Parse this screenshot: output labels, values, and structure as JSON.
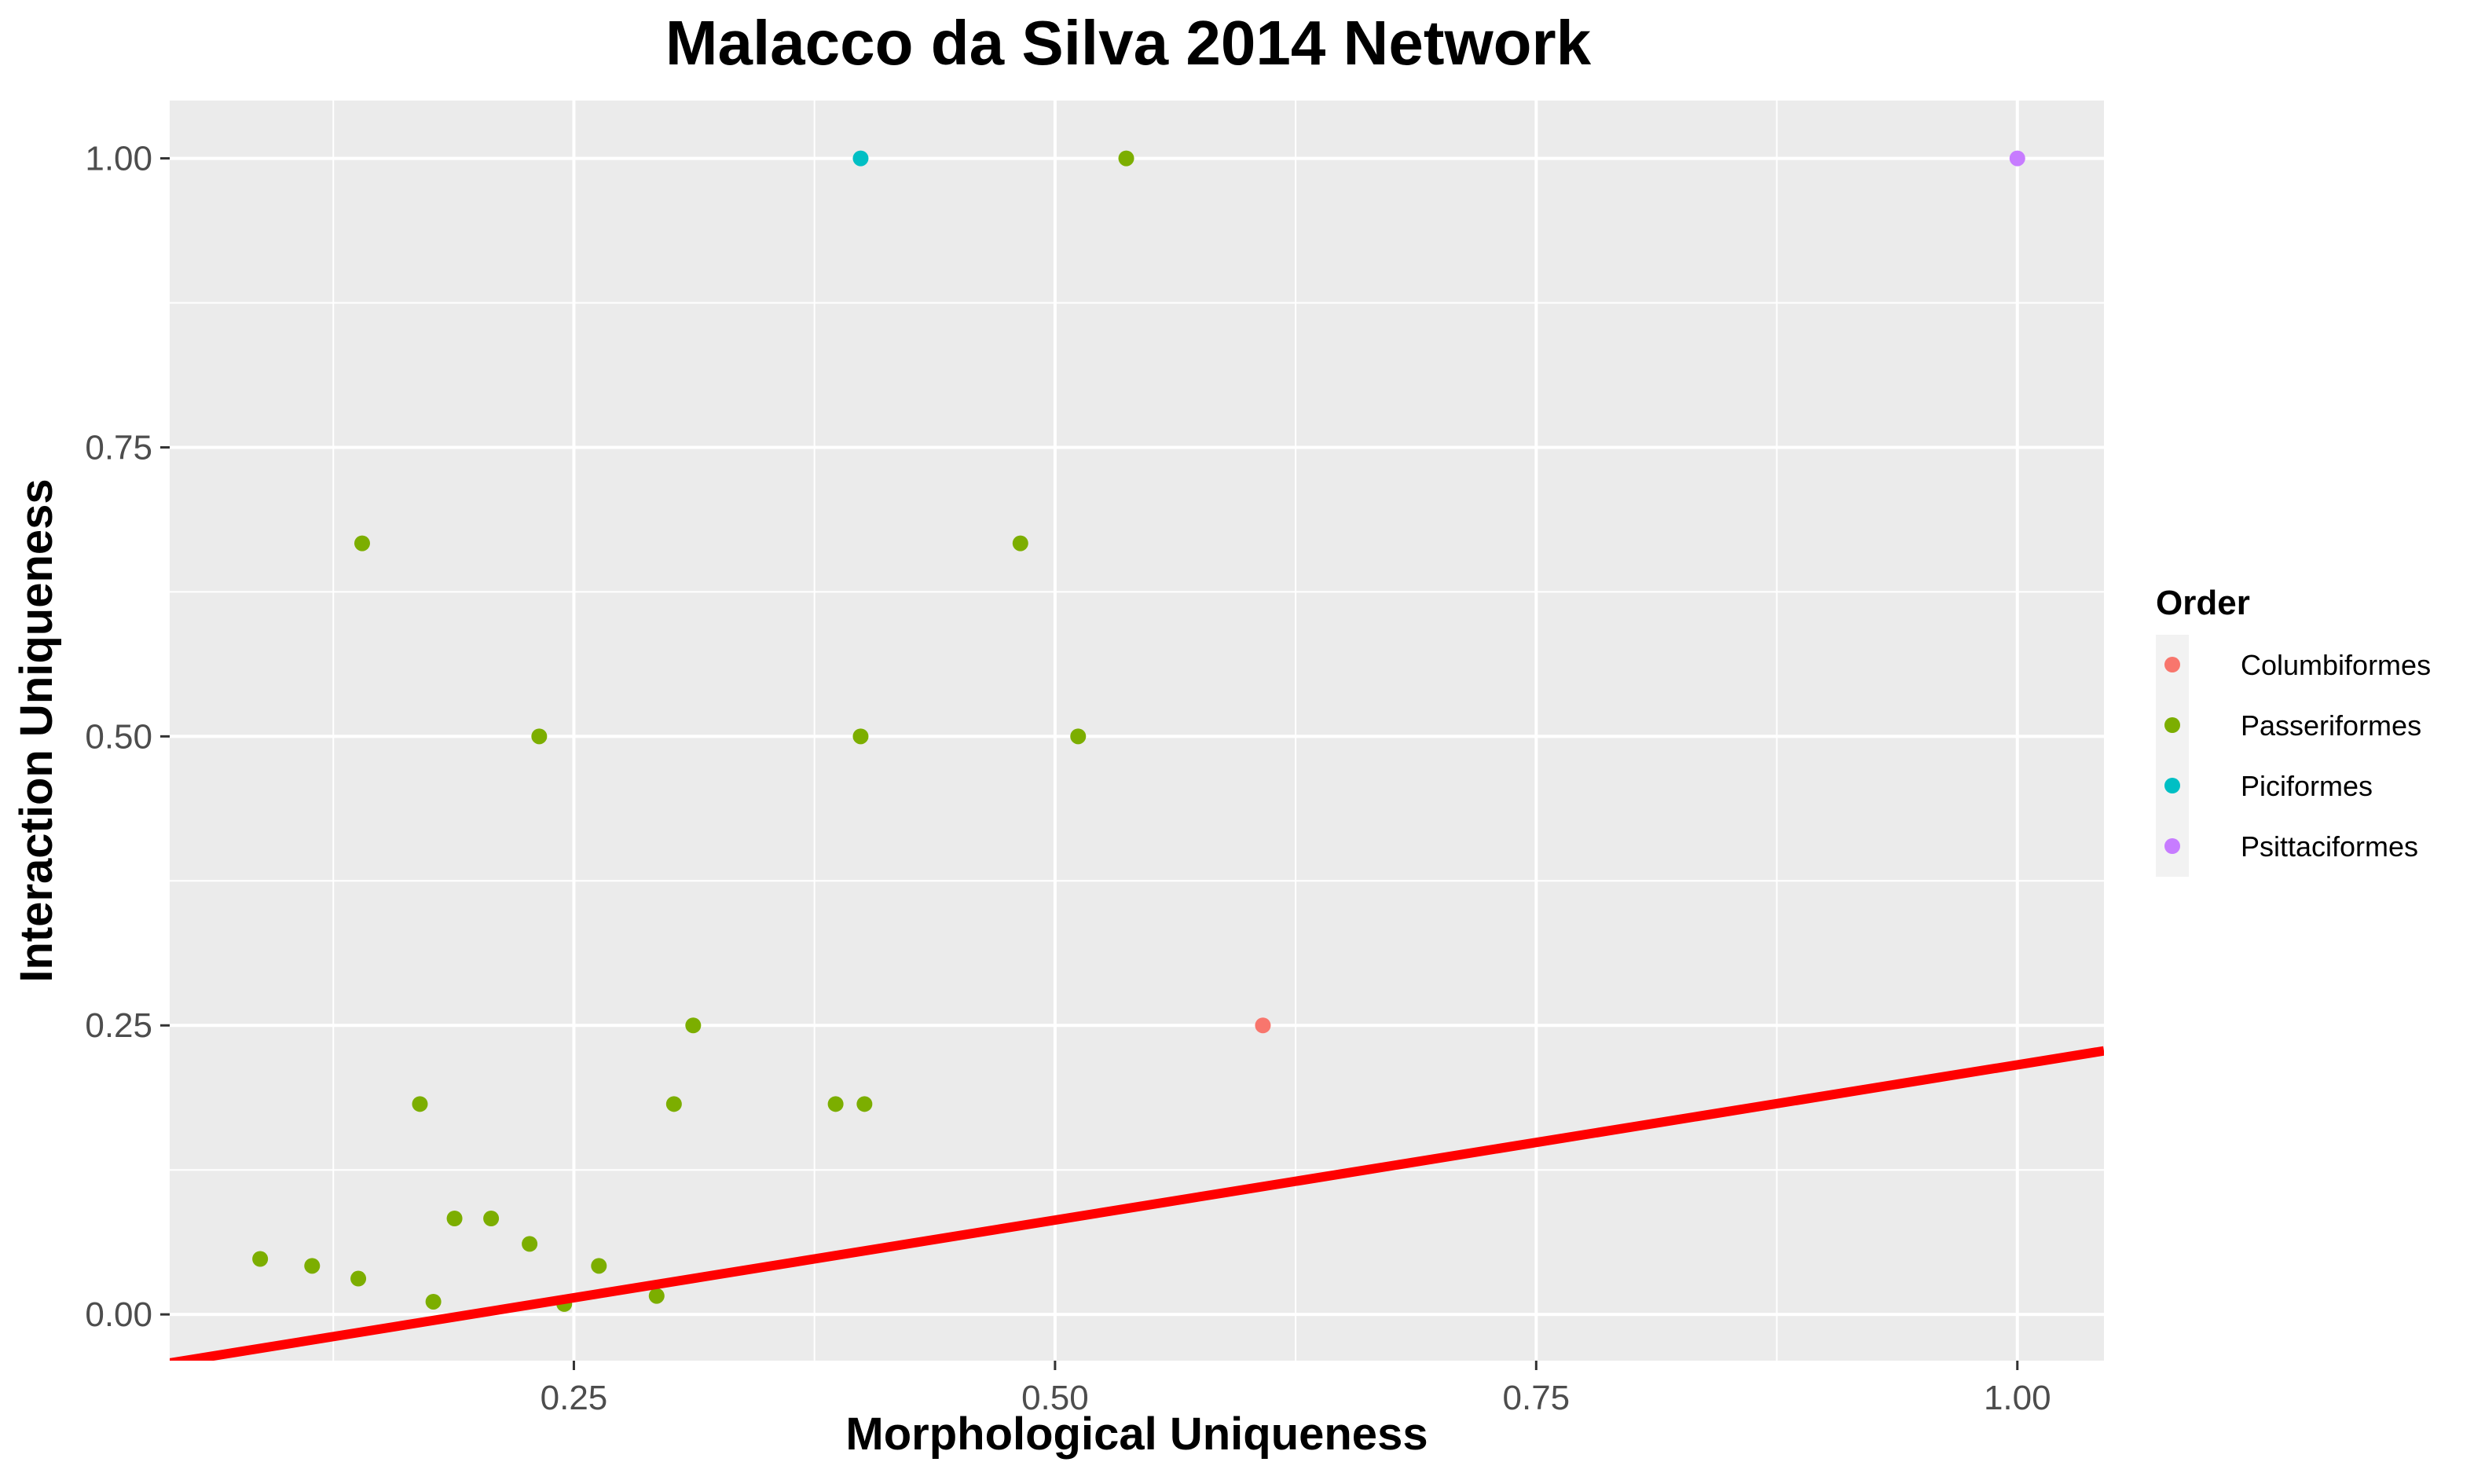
{
  "chart_data": {
    "type": "scatter",
    "title": "Malacco da Silva 2014 Network",
    "xlabel": "Morphological Uniqueness",
    "ylabel": "Interaction Uniqueness",
    "xlim": [
      0.04,
      1.045
    ],
    "ylim": [
      -0.04,
      1.05
    ],
    "x_ticks": [
      0.25,
      0.5,
      0.75,
      1.0
    ],
    "x_tick_labels": [
      "0.25",
      "0.50",
      "0.75",
      "1.00"
    ],
    "y_ticks": [
      0.0,
      0.25,
      0.5,
      0.75,
      1.0
    ],
    "y_tick_labels": [
      "0.00",
      "0.25",
      "0.50",
      "0.75",
      "1.00"
    ],
    "grid": true,
    "legend": {
      "title": "Order",
      "placement": "right",
      "entries": [
        {
          "name": "Columbiformes",
          "color": "#F8766D"
        },
        {
          "name": "Passeriformes",
          "color": "#7CAE00"
        },
        {
          "name": "Piciformes",
          "color": "#00BFC4"
        },
        {
          "name": "Psittaciformes",
          "color": "#C77CFF"
        }
      ]
    },
    "series": [
      {
        "name": "Columbiformes",
        "color": "#F8766D",
        "points": [
          [
            0.608,
            0.25
          ]
        ]
      },
      {
        "name": "Passeriformes",
        "color": "#7CAE00",
        "points": [
          [
            0.087,
            0.048
          ],
          [
            0.114,
            0.042
          ],
          [
            0.138,
            0.031
          ],
          [
            0.14,
            0.667
          ],
          [
            0.17,
            0.182
          ],
          [
            0.177,
            0.011
          ],
          [
            0.188,
            0.083
          ],
          [
            0.207,
            0.083
          ],
          [
            0.227,
            0.061
          ],
          [
            0.232,
            0.5
          ],
          [
            0.245,
            0.009
          ],
          [
            0.263,
            0.042
          ],
          [
            0.293,
            0.016
          ],
          [
            0.302,
            0.182
          ],
          [
            0.312,
            0.25
          ],
          [
            0.386,
            0.182
          ],
          [
            0.399,
            0.5
          ],
          [
            0.401,
            0.182
          ],
          [
            0.482,
            0.667
          ],
          [
            0.512,
            0.5
          ],
          [
            0.537,
            1.0
          ]
        ]
      },
      {
        "name": "Piciformes",
        "color": "#00BFC4",
        "points": [
          [
            0.399,
            1.0
          ]
        ]
      },
      {
        "name": "Psittaciformes",
        "color": "#C77CFF",
        "points": [
          [
            1.0,
            1.0
          ]
        ]
      }
    ],
    "reference_line": {
      "color": "#FF0000",
      "from": [
        0.04,
        -0.042
      ],
      "to": [
        1.045,
        0.228
      ]
    }
  }
}
